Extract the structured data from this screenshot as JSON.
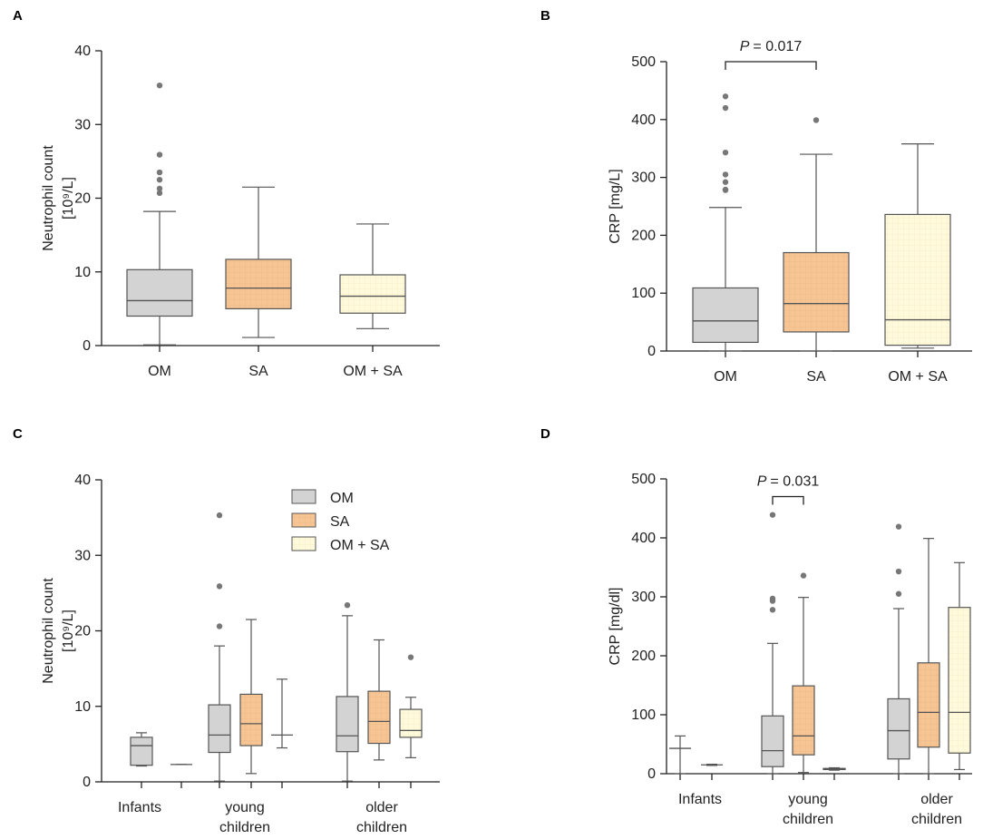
{
  "figure": {
    "colors": {
      "OM": "#d3d3d3",
      "SA": "#f7c594",
      "OM + SA": "#fffadc",
      "grid_SA": "#eab583",
      "grid_OMSA": "#f1ebc4"
    },
    "legend": [
      "OM",
      "SA",
      "OM + SA"
    ]
  },
  "chart_data": [
    {
      "id": "A",
      "type": "box",
      "panel_label": "A",
      "ylabel_line1": "Neutrophil count",
      "ylabel_line2": "[10⁹/L]",
      "ylim": [
        0,
        40
      ],
      "yticks": [
        0,
        10,
        20,
        30,
        40
      ],
      "categories": [
        "OM",
        "SA",
        "OM + SA"
      ],
      "boxes": [
        {
          "group": "OM",
          "category": "OM",
          "min": 0.1,
          "q1": 4.0,
          "median": 6.1,
          "q3": 10.3,
          "max": 18.2,
          "outliers": [
            20.7,
            21.3,
            22.5,
            23.5,
            25.9,
            35.3
          ]
        },
        {
          "group": "SA",
          "category": "SA",
          "min": 1.1,
          "q1": 5.0,
          "median": 7.8,
          "q3": 11.7,
          "max": 21.5,
          "outliers": []
        },
        {
          "group": "OM + SA",
          "category": "OM + SA",
          "min": 2.3,
          "q1": 4.4,
          "median": 6.7,
          "q3": 9.6,
          "max": 16.5,
          "outliers": []
        }
      ]
    },
    {
      "id": "B",
      "type": "box",
      "panel_label": "B",
      "ylabel_line1": "CRP [mg/L]",
      "ylim": [
        0,
        500
      ],
      "yticks": [
        0,
        100,
        200,
        300,
        400,
        500
      ],
      "categories": [
        "OM",
        "SA",
        "OM + SA"
      ],
      "annotation": {
        "text": "= 0.017",
        "italic": "P",
        "from": 0,
        "to": 1,
        "y": 500
      },
      "boxes": [
        {
          "group": "OM",
          "category": "OM",
          "min": 0,
          "q1": 15,
          "median": 52,
          "q3": 109,
          "max": 248,
          "outliers": [
            278,
            279,
            292,
            305,
            343,
            420,
            440
          ]
        },
        {
          "group": "SA",
          "category": "SA",
          "min": 0,
          "q1": 33,
          "median": 82,
          "q3": 170,
          "max": 340,
          "outliers": [
            399
          ]
        },
        {
          "group": "OM + SA",
          "category": "OM + SA",
          "min": 5,
          "q1": 10,
          "median": 54,
          "q3": 236,
          "max": 358,
          "outliers": []
        }
      ]
    },
    {
      "id": "C",
      "type": "box",
      "panel_label": "C",
      "ylabel_line1": "Neutrophil count",
      "ylabel_line2": "[10⁹/L]",
      "ylim": [
        0,
        40
      ],
      "yticks": [
        0,
        10,
        20,
        30,
        40
      ],
      "categories": [
        [
          "Infants"
        ],
        [
          "young",
          "children"
        ],
        [
          "older",
          "children"
        ]
      ],
      "boxes": [
        {
          "group": "OM",
          "category": 0,
          "min": 2.1,
          "q1": 2.2,
          "median": 4.8,
          "q3": 5.9,
          "max": 6.5,
          "outliers": []
        },
        {
          "group": "SA",
          "category": 0,
          "min": 2.3,
          "q1": 2.3,
          "median": 2.3,
          "q3": 2.3,
          "max": 2.3,
          "outliers": []
        },
        {
          "group": "OM",
          "category": 1,
          "min": 0.1,
          "q1": 3.9,
          "median": 6.2,
          "q3": 10.2,
          "max": 18.0,
          "outliers": [
            20.6,
            25.9,
            35.3
          ]
        },
        {
          "group": "SA",
          "category": 1,
          "min": 1.1,
          "q1": 4.8,
          "median": 7.7,
          "q3": 11.6,
          "max": 21.5,
          "outliers": []
        },
        {
          "group": "OM + SA",
          "category": 1,
          "min": 4.5,
          "q1": 6.2,
          "median": 6.2,
          "q3": 6.2,
          "max": 13.6,
          "outliers": []
        },
        {
          "group": "OM",
          "category": 2,
          "min": 0.1,
          "q1": 4.0,
          "median": 6.1,
          "q3": 11.3,
          "max": 22.0,
          "outliers": [
            23.4
          ]
        },
        {
          "group": "SA",
          "category": 2,
          "min": 2.9,
          "q1": 5.1,
          "median": 8.0,
          "q3": 12.0,
          "max": 18.8,
          "outliers": []
        },
        {
          "group": "OM + SA",
          "category": 2,
          "min": 3.2,
          "q1": 5.9,
          "median": 6.8,
          "q3": 9.6,
          "max": 11.2,
          "outliers": [
            16.5
          ]
        }
      ]
    },
    {
      "id": "D",
      "type": "box",
      "panel_label": "D",
      "ylabel_line1": "CRP [mg/dl]",
      "ylim": [
        0,
        500
      ],
      "yticks": [
        0,
        100,
        200,
        300,
        400,
        500
      ],
      "categories": [
        [
          "Infants"
        ],
        [
          "young",
          "children"
        ],
        [
          "older",
          "children"
        ]
      ],
      "annotation": {
        "text": "= 0.031",
        "italic": "P",
        "from": 2,
        "to": 3,
        "y": 470
      },
      "boxes": [
        {
          "group": "OM",
          "category": 0,
          "min": 0,
          "q1": 43,
          "median": 43,
          "q3": 43,
          "max": 64,
          "outliers": []
        },
        {
          "group": "SA",
          "category": 0,
          "min": 14,
          "q1": 15,
          "median": 15,
          "q3": 15,
          "max": 16,
          "outliers": []
        },
        {
          "group": "OM",
          "category": 1,
          "min": 0,
          "q1": 12,
          "median": 39,
          "q3": 98,
          "max": 221,
          "outliers": [
            278,
            293,
            297,
            439
          ]
        },
        {
          "group": "SA",
          "category": 1,
          "min": 2,
          "q1": 32,
          "median": 64,
          "q3": 149,
          "max": 299,
          "outliers": [
            336
          ]
        },
        {
          "group": "OM + SA",
          "category": 1,
          "min": 6,
          "q1": 7,
          "median": 8,
          "q3": 9,
          "max": 10,
          "outliers": []
        },
        {
          "group": "OM",
          "category": 2,
          "min": 0,
          "q1": 25,
          "median": 73,
          "q3": 127,
          "max": 280,
          "outliers": [
            305,
            343,
            419
          ]
        },
        {
          "group": "SA",
          "category": 2,
          "min": 0,
          "q1": 45,
          "median": 104,
          "q3": 188,
          "max": 399,
          "outliers": []
        },
        {
          "group": "OM + SA",
          "category": 2,
          "min": 7,
          "q1": 35,
          "median": 104,
          "q3": 282,
          "max": 358,
          "outliers": []
        }
      ]
    }
  ]
}
